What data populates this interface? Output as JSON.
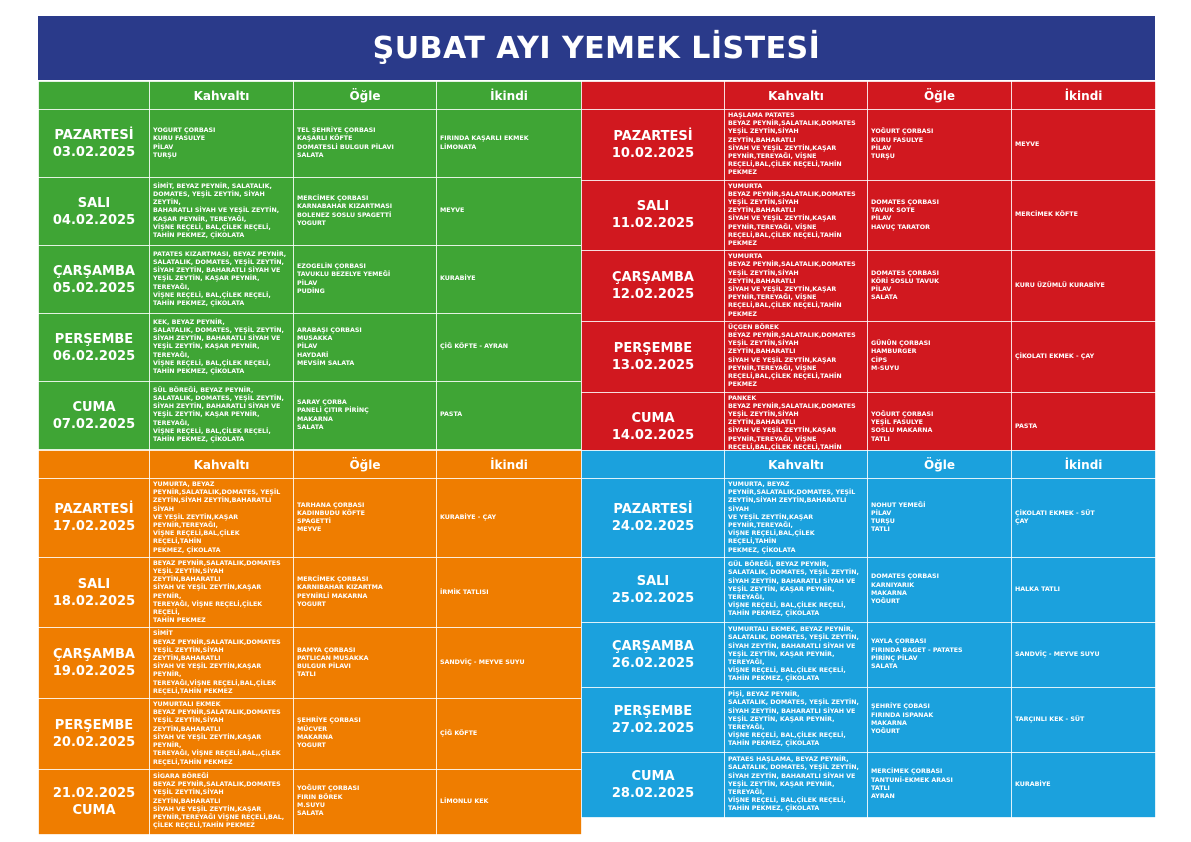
{
  "title": "ŞUBAT AYI YEMEK LİSTESİ",
  "headers": {
    "breakfast": "Kahvaltı",
    "lunch": "Öğle",
    "afternoon": "İkindi"
  },
  "colors": {
    "title": "#2a3a8a",
    "week1": "#3fa535",
    "week2": "#d1181f",
    "week3": "#ef7d00",
    "week4": "#1ba1dd"
  },
  "weeks": [
    {
      "days": [
        {
          "name": "PAZARTESİ",
          "date": "03.02.2025",
          "breakfast": "YOGURT ÇORBASI\nKURU FASULYE\nPİLAV\nTURŞU",
          "lunch": "TEL ŞEHRİYE ÇORBASI\nKAŞARLI KÖFTE\nDOMATESLİ BULGUR PİLAVI\nSALATA",
          "afternoon": "FIRINDA KAŞARLI EKMEK\nLİMONATA"
        },
        {
          "name": "SALI",
          "date": "04.02.2025",
          "breakfast": "SİMİT, BEYAZ PEYNİR, SALATALIK,\nDOMATES, YEŞİL ZEYTİN, SİYAH ZEYTİN,\nBAHARATLI SİYAH VE YEŞİL ZEYTİN,\nKAŞAR PEYNİR, TEREYAĞI,\nVİŞNE REÇELİ, BAL,ÇİLEK REÇELİ,\nTAHİN PEKMEZ, ÇİKOLATA",
          "lunch": "MERCİMEK ÇORBASI\nKARNABAHAR KIZARTMASI\nBOLENEZ SOSLU SPAGETTİ\nYOGURT",
          "afternoon": "MEYVE"
        },
        {
          "name": "ÇARŞAMBA",
          "date": "05.02.2025",
          "breakfast": "PATATES KIZARTMASI, BEYAZ PEYNİR,\nSALATALIK, DOMATES, YEŞİL ZEYTİN,\nSİYAH ZEYTİN, BAHARATLI SİYAH VE\nYEŞİL ZEYTİN, KAŞAR PEYNİR, TEREYAĞI,\nVİŞNE REÇELİ, BAL,ÇİLEK REÇELİ,\nTAHİN PEKMEZ, ÇİKOLATA",
          "lunch": "EZOGELİN ÇORBASI\nTAVUKLU BEZELYE YEMEĞİ\nPİLAV\nPUDİNG",
          "afternoon": "KURABİYE"
        },
        {
          "name": "PERŞEMBE",
          "date": "06.02.2025",
          "breakfast": "KEK, BEYAZ PEYNİR,\nSALATALIK, DOMATES, YEŞİL ZEYTİN,\nSİYAH ZEYTİN, BAHARATLI SİYAH VE\nYEŞİL ZEYTİN, KAŞAR PEYNİR, TEREYAĞI,\nVİŞNE REÇELİ, BAL,ÇİLEK REÇELİ,\nTAHİN PEKMEZ, ÇİKOLATA",
          "lunch": "ARABAŞI ÇORBASI\nMUSAKKA\nPİLAV\nHAYDARİ\nMEVSİM SALATA",
          "afternoon": "ÇİĞ KÖFTE - AYRAN"
        },
        {
          "name": "CUMA",
          "date": "07.02.2025",
          "breakfast": "SÜL BÖREĞİ, BEYAZ PEYNİR,\nSALATALIK, DOMATES, YEŞİL ZEYTİN,\nSİYAH ZEYTİN, BAHARATLI SİYAH VE\nYEŞİL ZEYTİN, KAŞAR PEYNİR, TEREYAĞI,\nVİŞNE REÇELİ, BAL,ÇİLEK REÇELİ,\nTAHİN PEKMEZ, ÇİKOLATA",
          "lunch": "SARAY ÇORBA\nPANELİ ÇITIR PİRİNÇ\nMAKARNA\nSALATA",
          "afternoon": "PASTA"
        }
      ]
    },
    {
      "days": [
        {
          "name": "PAZARTESİ",
          "date": "10.02.2025",
          "breakfast": "HAŞLAMA PATATES\nBEYAZ PEYNİR,SALATALIK,DOMATES\nYEŞİL ZEYTİN,SİYAH ZEYTİN,BAHARATLI\nSİYAH VE YEŞİL ZEYTİN,KAŞAR\nPEYNİR,TEREYAĞI, VİŞNE\nREÇELİ,BAL,ÇİLEK REÇELİ,TAHİN\nPEKMEZ",
          "lunch": "YOĞURT ÇORBASI\nKURU FASULYE\nPİLAV\nTURŞU",
          "afternoon": "MEYVE"
        },
        {
          "name": "SALI",
          "date": "11.02.2025",
          "breakfast": "YUMURTA\nBEYAZ PEYNİR,SALATALIK,DOMATES\nYEŞİL ZEYTİN,SİYAH ZEYTİN,BAHARATLI\nSİYAH VE YEŞİL ZEYTİN,KAŞAR\nPEYNİR,TEREYAĞI, VİŞNE\nREÇELİ,BAL,ÇİLEK REÇELİ,TAHİN\nPEKMEZ",
          "lunch": "DOMATES ÇORBASI\nTAVUK SOTE\nPİLAV\nHAVUÇ TARATOR",
          "afternoon": "MERCİMEK KÖFTE"
        },
        {
          "name": "ÇARŞAMBA",
          "date": "12.02.2025",
          "breakfast": "YUMURTA\nBEYAZ PEYNİR,SALATALIK,DOMATES\nYEŞİL ZEYTİN,SİYAH ZEYTİN,BAHARATLI\nSİYAH VE YEŞİL ZEYTİN,KAŞAR\nPEYNİR,TEREYAĞI, VİŞNE\nREÇELİ,BAL,ÇİLEK REÇELİ,TAHİN\nPEKMEZ",
          "lunch": "DOMATES ÇORBASI\nKÖRİ SOSLU TAVUK\nPİLAV\nSALATA",
          "afternoon": "KURU ÜZÜMLÜ KURABİYE"
        },
        {
          "name": "PERŞEMBE",
          "date": "13.02.2025",
          "breakfast": "ÜÇGEN BÖREK\nBEYAZ PEYNİR,SALATALIK,DOMATES\nYEŞİL ZEYTİN,SİYAH ZEYTİN,BAHARATLI\nSİYAH VE YEŞİL ZEYTİN,KAŞAR\nPEYNİR,TEREYAĞI, VİŞNE\nREÇELİ,BAL,ÇİLEK REÇELİ,TAHİN\nPEKMEZ",
          "lunch": "GÜNÜN ÇORBASI\nHAMBURGER\nCİPS\nM-SUYU",
          "afternoon": "ÇİKOLATI EKMEK - ÇAY"
        },
        {
          "name": "CUMA",
          "date": "14.02.2025",
          "breakfast": "PANKEK\nBEYAZ PEYNİR,SALATALIK,DOMATES\nYEŞİL ZEYTİN,SİYAH ZEYTİN,BAHARATLI\nSİYAH VE YEŞİL ZEYTİN,KAŞAR\nPEYNİR,TEREYAĞI, VİŞNE\nREÇELİ,BAL,ÇİLEK REÇELİ,TAHİN\nPEKMEZ",
          "lunch": "YOĞURT ÇORBASI\nYEŞİL FASULYE\nSOSLU MAKARNA\nTATLI",
          "afternoon": "PASTA"
        }
      ]
    },
    {
      "days": [
        {
          "name": "PAZARTESİ",
          "date": "17.02.2025",
          "breakfast": "YUMURTA, BEYAZ\nPEYNİR,SALATALIK,DOMATES, YEŞİL\nZEYTİN,SİYAH ZEYTİN,BAHARATLI SİYAH\nVE YEŞİL ZEYTİN,KAŞAR PEYNİR,TEREYAĞI,\nVİŞNE REÇELİ,BAL,ÇİLEK REÇELİ,TAHİN\nPEKMEZ, ÇİKOLATA",
          "lunch": "TARHANA ÇORBASI\nKADINBUDU KÖFTE\nSPAGETTİ\nMEYVE",
          "afternoon": "KURABİYE - ÇAY"
        },
        {
          "name": "SALI",
          "date": "18.02.2025",
          "breakfast": "BEYAZ PEYNİR,SALATALIK,DOMATES\nYEŞİL ZEYTİN,SİYAH ZEYTİN,BAHARATLI\nSİYAH VE YEŞİL ZEYTİN,KAŞAR PEYNİR,\nTEREYAĞI, VİŞNE REÇELİ,ÇİLEK REÇELİ,\nTAHİN PEKMEZ",
          "lunch": "MERCİMEK ÇORBASI\nKARNIBAHAR KIZARTMA\nPEYNİRLİ MAKARNA\nYOGURT",
          "afternoon": "İRMİK TATLISI"
        },
        {
          "name": "ÇARŞAMBA",
          "date": "19.02.2025",
          "breakfast": "SİMİT\nBEYAZ PEYNİR,SALATALIK,DOMATES\nYEŞİL ZEYTİN,SİYAH ZEYTİN,BAHARATLI\nSİYAH VE YEŞİL ZEYTİN,KAŞAR PEYNİR,\nTEREYAĞI,VİŞNE REÇELİ,BAL,ÇİLEK\nREÇELİ,TAHİN PEKMEZ",
          "lunch": "BAMYA ÇORBASI\nPATLICAN MUSAKKA\nBULGUR PİLAVI\nTATLI",
          "afternoon": "SANDVİÇ - MEYVE SUYU"
        },
        {
          "name": "PERŞEMBE",
          "date": "20.02.2025",
          "breakfast": "YUMURTALI EKMEK\nBEYAZ PEYNİR,SALATALIK,DOMATES\nYEŞİL ZEYTİN,SİYAH ZEYTİN,BAHARATLI\nSİYAH VE YEŞİL ZEYTİN,KAŞAR PEYNİR,\nTEREYAĞI, VİŞNE REÇELİ,BAL,,ÇİLEK\nREÇELİ,TAHİN PEKMEZ",
          "lunch": "ŞEHRİYE ÇORBASI\nMÜCVER\nMAKARNA\nYOGURT",
          "afternoon": "ÇİĞ KÖFTE"
        },
        {
          "name": "CUMA",
          "date": "21.02.2025",
          "breakfast": "SİGARA BÖREĞİ\nBEYAZ PEYNİR,SALATALIK,DOMATES\nYEŞİL ZEYTİN,SİYAH ZEYTİN,BAHARATLI\nSİYAH VE YEŞİL ZEYTİN,KAŞAR\nPEYNİR,TEREYAĞI VİŞNE REÇELİ,BAL,\nÇİLEK REÇELİ,TAHİN PEKMEZ",
          "lunch": "YOĞURT ÇORBASI\nFIRIN BÖREK\nM.SUYU\nSALATA",
          "afternoon": "LİMONLU KEK"
        }
      ]
    },
    {
      "days": [
        {
          "name": "PAZARTESİ",
          "date": "24.02.2025",
          "breakfast": "YUMURTA, BEYAZ\nPEYNİR,SALATALIK,DOMATES, YEŞİL\nZEYTİN,SİYAH ZEYTİN,BAHARATLI SİYAH\nVE YEŞİL ZEYTİN,KAŞAR PEYNİR,TEREYAĞI,\nVİŞNE REÇELİ,BAL,ÇİLEK REÇELİ,TAHİN\nPEKMEZ, ÇİKOLATA",
          "lunch": "NOHUT YEMEĞİ\nPİLAV\nTURŞU\nTATLI",
          "afternoon": "ÇİKOLATI EKMEK - SÜT\nÇAY"
        },
        {
          "name": "SALI",
          "date": "25.02.2025",
          "breakfast": "GÜL BÖREĞİ, BEYAZ PEYNİR,\nSALATALIK, DOMATES, YEŞİL ZEYTİN,\nSİYAH ZEYTİN, BAHARATLI SİYAH VE\n YEŞİL ZEYTİN, KAŞAR PEYNİR, TEREYAĞI,\nVİŞNE REÇELİ, BAL,ÇİLEK REÇELİ,\nTAHİN PEKMEZ, ÇİKOLATA",
          "lunch": "DOMATES ÇORBASI\nKARNIYARIK\nMAKARNA\nYOĞURT",
          "afternoon": "HALKA TATLI"
        },
        {
          "name": "ÇARŞAMBA",
          "date": "26.02.2025",
          "breakfast": "YUMURTALI EKMEK, BEYAZ PEYNİR,\nSALATALIK, DOMATES, YEŞİL ZEYTİN,\nSİYAH ZEYTİN, BAHARATLI SİYAH VE\n YEŞİL ZEYTİN, KAŞAR PEYNİR, TEREYAĞI,\nVİŞNE REÇELİ, BAL,ÇİLEK REÇELİ,\nTAHİN PEKMEZ, ÇİKOLATA",
          "lunch": "YAYLA ÇORBASI\nFIRINDA BAGET - PATATES\nPİRİNÇ PİLAV\nSALATA",
          "afternoon": "SANDVİÇ - MEYVE SUYU"
        },
        {
          "name": "PERŞEMBE",
          "date": "27.02.2025",
          "breakfast": "PİŞİ, BEYAZ PEYNİR,\nSALATALIK, DOMATES, YEŞİL ZEYTİN,\nSİYAH ZEYTİN, BAHARATLI SİYAH VE\n YEŞİL ZEYTİN, KAŞAR PEYNİR, TEREYAĞI,\nVİŞNE REÇELİ, BAL,ÇİLEK REÇELİ,\nTAHİN PEKMEZ, ÇİKOLATA",
          "lunch": "ŞEHRİYE ÇOBASI\nFIRINDA ISPANAK\nMAKARNA\nYOĞURT",
          "afternoon": "TARÇINLI KEK - SÜT"
        },
        {
          "name": "CUMA",
          "date": "28.02.2025",
          "breakfast": "PATAES HAŞLAMA, BEYAZ PEYNİR,\nSALATALIK, DOMATES, YEŞİL ZEYTİN,\nSİYAH ZEYTİN, BAHARATLI SİYAH VE\n YEŞİL ZEYTİN, KAŞAR PEYNİR, TEREYAĞI,\nVİŞNE REÇELİ, BAL,ÇİLEK REÇELİ,\nTAHİN PEKMEZ, ÇİKOLATA",
          "lunch": "MERCİMEK ÇORBASI\nTANTUNİ-EKMEK ARASI\nTATLI\nAYRAN",
          "afternoon": "KURABİYE"
        }
      ]
    }
  ]
}
